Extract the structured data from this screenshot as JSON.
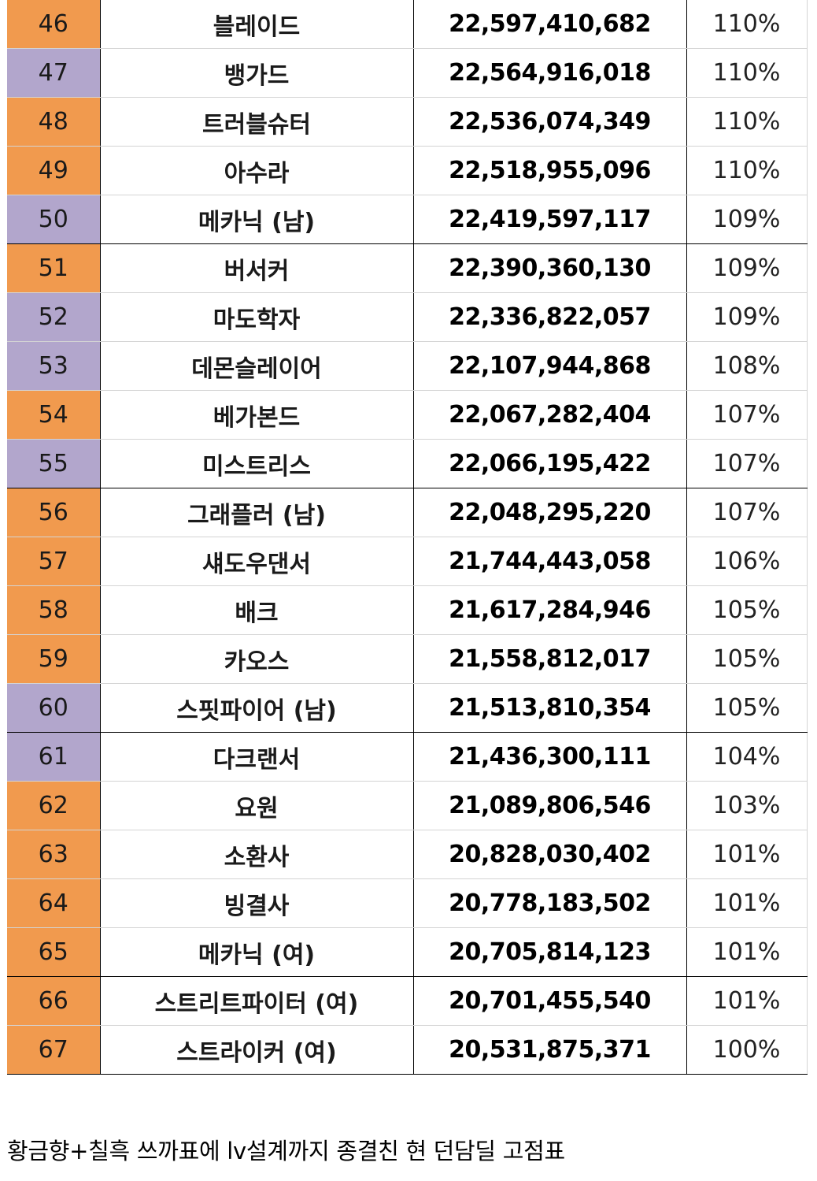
{
  "colors": {
    "orange": "#f19a4e",
    "purple": "#b2a6cc"
  },
  "rows": [
    {
      "rank": "46",
      "class_name": "블레이드",
      "damage": "22,597,410,682",
      "percent": "110%",
      "tag": "orange"
    },
    {
      "rank": "47",
      "class_name": "뱅가드",
      "damage": "22,564,916,018",
      "percent": "110%",
      "tag": "purple"
    },
    {
      "rank": "48",
      "class_name": "트러블슈터",
      "damage": "22,536,074,349",
      "percent": "110%",
      "tag": "orange"
    },
    {
      "rank": "49",
      "class_name": "아수라",
      "damage": "22,518,955,096",
      "percent": "110%",
      "tag": "orange"
    },
    {
      "rank": "50",
      "class_name": "메카닉 (남)",
      "damage": "22,419,597,117",
      "percent": "109%",
      "tag": "purple"
    },
    {
      "rank": "51",
      "class_name": "버서커",
      "damage": "22,390,360,130",
      "percent": "109%",
      "tag": "orange"
    },
    {
      "rank": "52",
      "class_name": "마도학자",
      "damage": "22,336,822,057",
      "percent": "109%",
      "tag": "purple"
    },
    {
      "rank": "53",
      "class_name": "데몬슬레이어",
      "damage": "22,107,944,868",
      "percent": "108%",
      "tag": "purple"
    },
    {
      "rank": "54",
      "class_name": "베가본드",
      "damage": "22,067,282,404",
      "percent": "107%",
      "tag": "orange"
    },
    {
      "rank": "55",
      "class_name": "미스트리스",
      "damage": "22,066,195,422",
      "percent": "107%",
      "tag": "purple"
    },
    {
      "rank": "56",
      "class_name": "그래플러 (남)",
      "damage": "22,048,295,220",
      "percent": "107%",
      "tag": "orange"
    },
    {
      "rank": "57",
      "class_name": "섀도우댄서",
      "damage": "21,744,443,058",
      "percent": "106%",
      "tag": "orange"
    },
    {
      "rank": "58",
      "class_name": "배크",
      "damage": "21,617,284,946",
      "percent": "105%",
      "tag": "orange"
    },
    {
      "rank": "59",
      "class_name": "카오스",
      "damage": "21,558,812,017",
      "percent": "105%",
      "tag": "orange"
    },
    {
      "rank": "60",
      "class_name": "스핏파이어 (남)",
      "damage": "21,513,810,354",
      "percent": "105%",
      "tag": "purple"
    },
    {
      "rank": "61",
      "class_name": "다크랜서",
      "damage": "21,436,300,111",
      "percent": "104%",
      "tag": "purple"
    },
    {
      "rank": "62",
      "class_name": "요원",
      "damage": "21,089,806,546",
      "percent": "103%",
      "tag": "orange"
    },
    {
      "rank": "63",
      "class_name": "소환사",
      "damage": "20,828,030,402",
      "percent": "101%",
      "tag": "orange"
    },
    {
      "rank": "64",
      "class_name": "빙결사",
      "damage": "20,778,183,502",
      "percent": "101%",
      "tag": "orange"
    },
    {
      "rank": "65",
      "class_name": "메카닉 (여)",
      "damage": "20,705,814,123",
      "percent": "101%",
      "tag": "orange"
    },
    {
      "rank": "66",
      "class_name": "스트리트파이터 (여)",
      "damage": "20,701,455,540",
      "percent": "101%",
      "tag": "orange"
    },
    {
      "rank": "67",
      "class_name": "스트라이커 (여)",
      "damage": "20,531,875,371",
      "percent": "100%",
      "tag": "orange"
    }
  ],
  "caption": "황금향+칠흑 쓰까표에 lv설계까지 종결친 현 던담딜 고점표"
}
